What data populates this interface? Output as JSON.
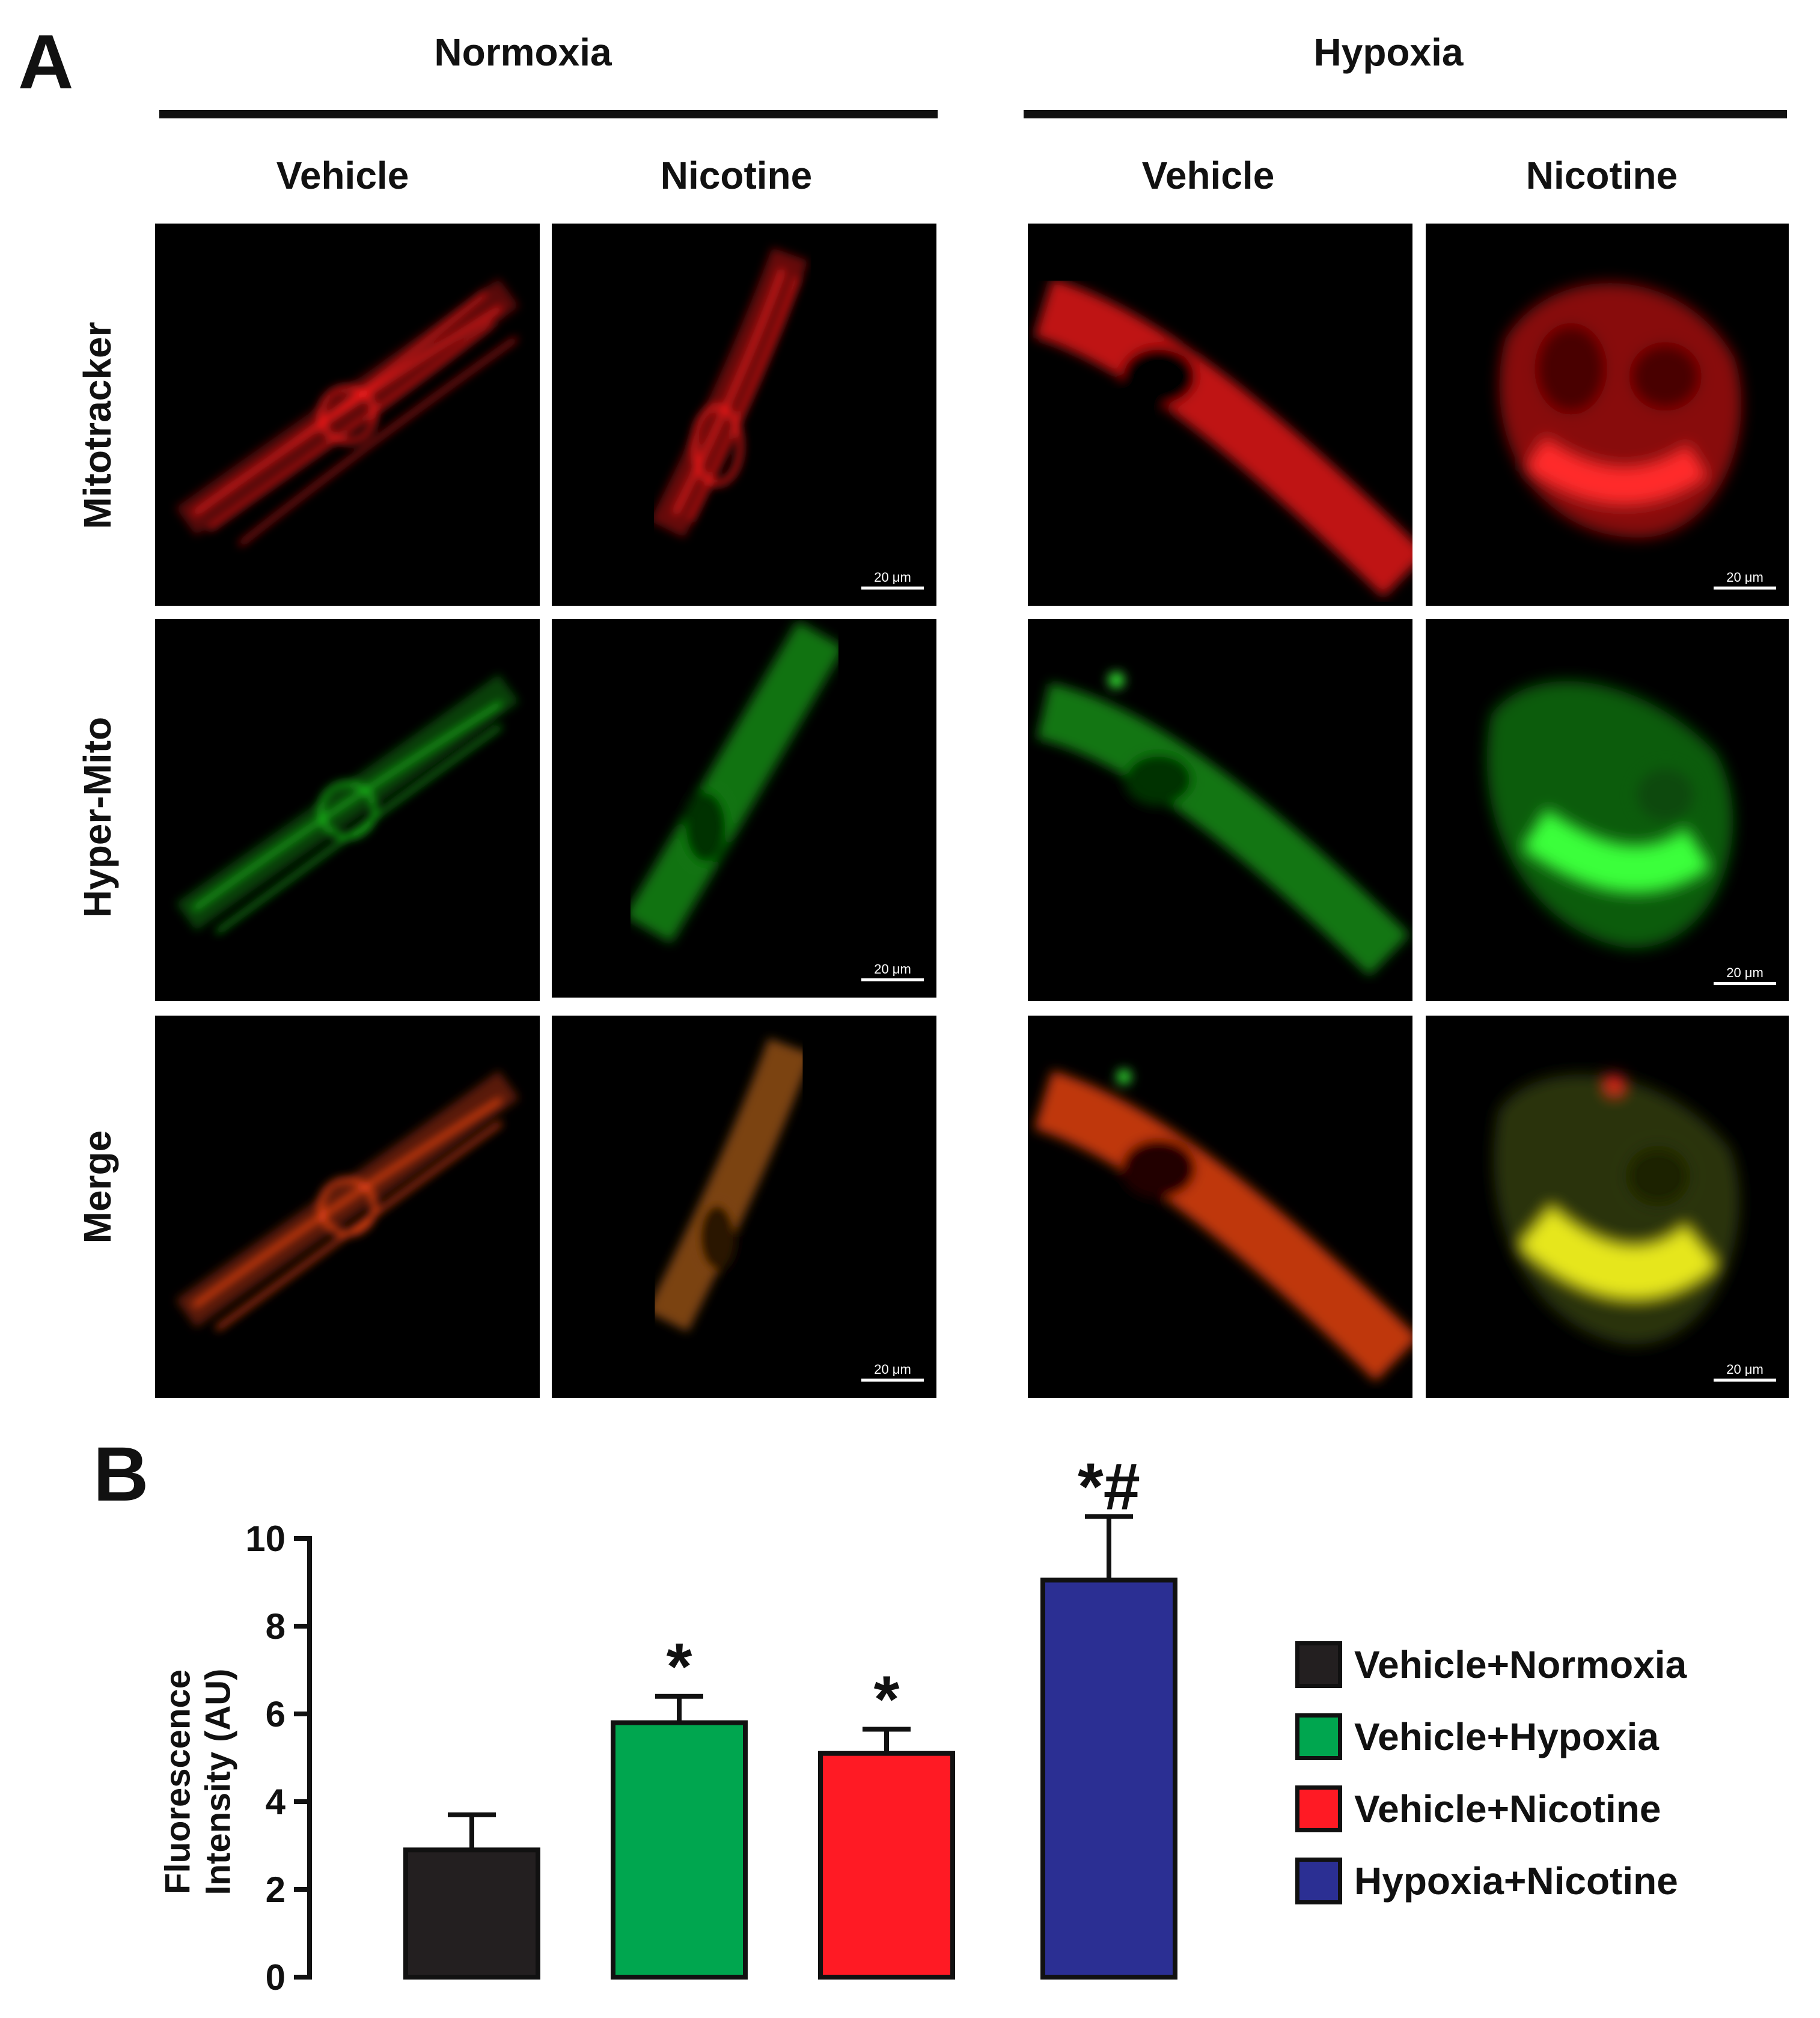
{
  "panel_a": {
    "letter": "A",
    "groups": [
      "Normoxia",
      "Hypoxia"
    ],
    "columns": [
      "Vehicle",
      "Nicotine",
      "Vehicle",
      "Nicotine"
    ],
    "rows": [
      "Mitotracker",
      "Hyper-Mito",
      "Merge"
    ],
    "scale_bar_text": "20 μm",
    "colors": {
      "mitotracker": "#ff1a1a",
      "hyper_mito": "#1fd11f",
      "merge_normoxia": "#ff5a14",
      "merge_hypoxia_nicotine": "#e6e61a"
    }
  },
  "panel_b": {
    "letter": "B",
    "chart_data": {
      "type": "bar",
      "categories": [
        "Vehicle+Normoxia",
        "Vehicle+Hypoxia",
        "Vehicle+Nicotine",
        "Hypoxia+Nicotine"
      ],
      "values": [
        2.9,
        5.8,
        5.1,
        9.05
      ],
      "errors": [
        0.8,
        0.6,
        0.55,
        1.45
      ],
      "significance": [
        "",
        "*",
        "*",
        "*#"
      ],
      "colors": [
        "#231f20",
        "#00a64f",
        "#ff1a24",
        "#2b2f93"
      ],
      "ylabel": "Fluorescence Intensity (AU)",
      "ylabel_lines": [
        "Fluorescence",
        "Intensity (AU)"
      ],
      "ylim": [
        0,
        10
      ],
      "yticks": [
        "0",
        "2",
        "4",
        "6",
        "8",
        "10"
      ],
      "legend": [
        "Vehicle+Normoxia",
        "Vehicle+Hypoxia",
        "Vehicle+Nicotine",
        "Hypoxia+Nicotine"
      ],
      "legend_position": "right"
    }
  }
}
